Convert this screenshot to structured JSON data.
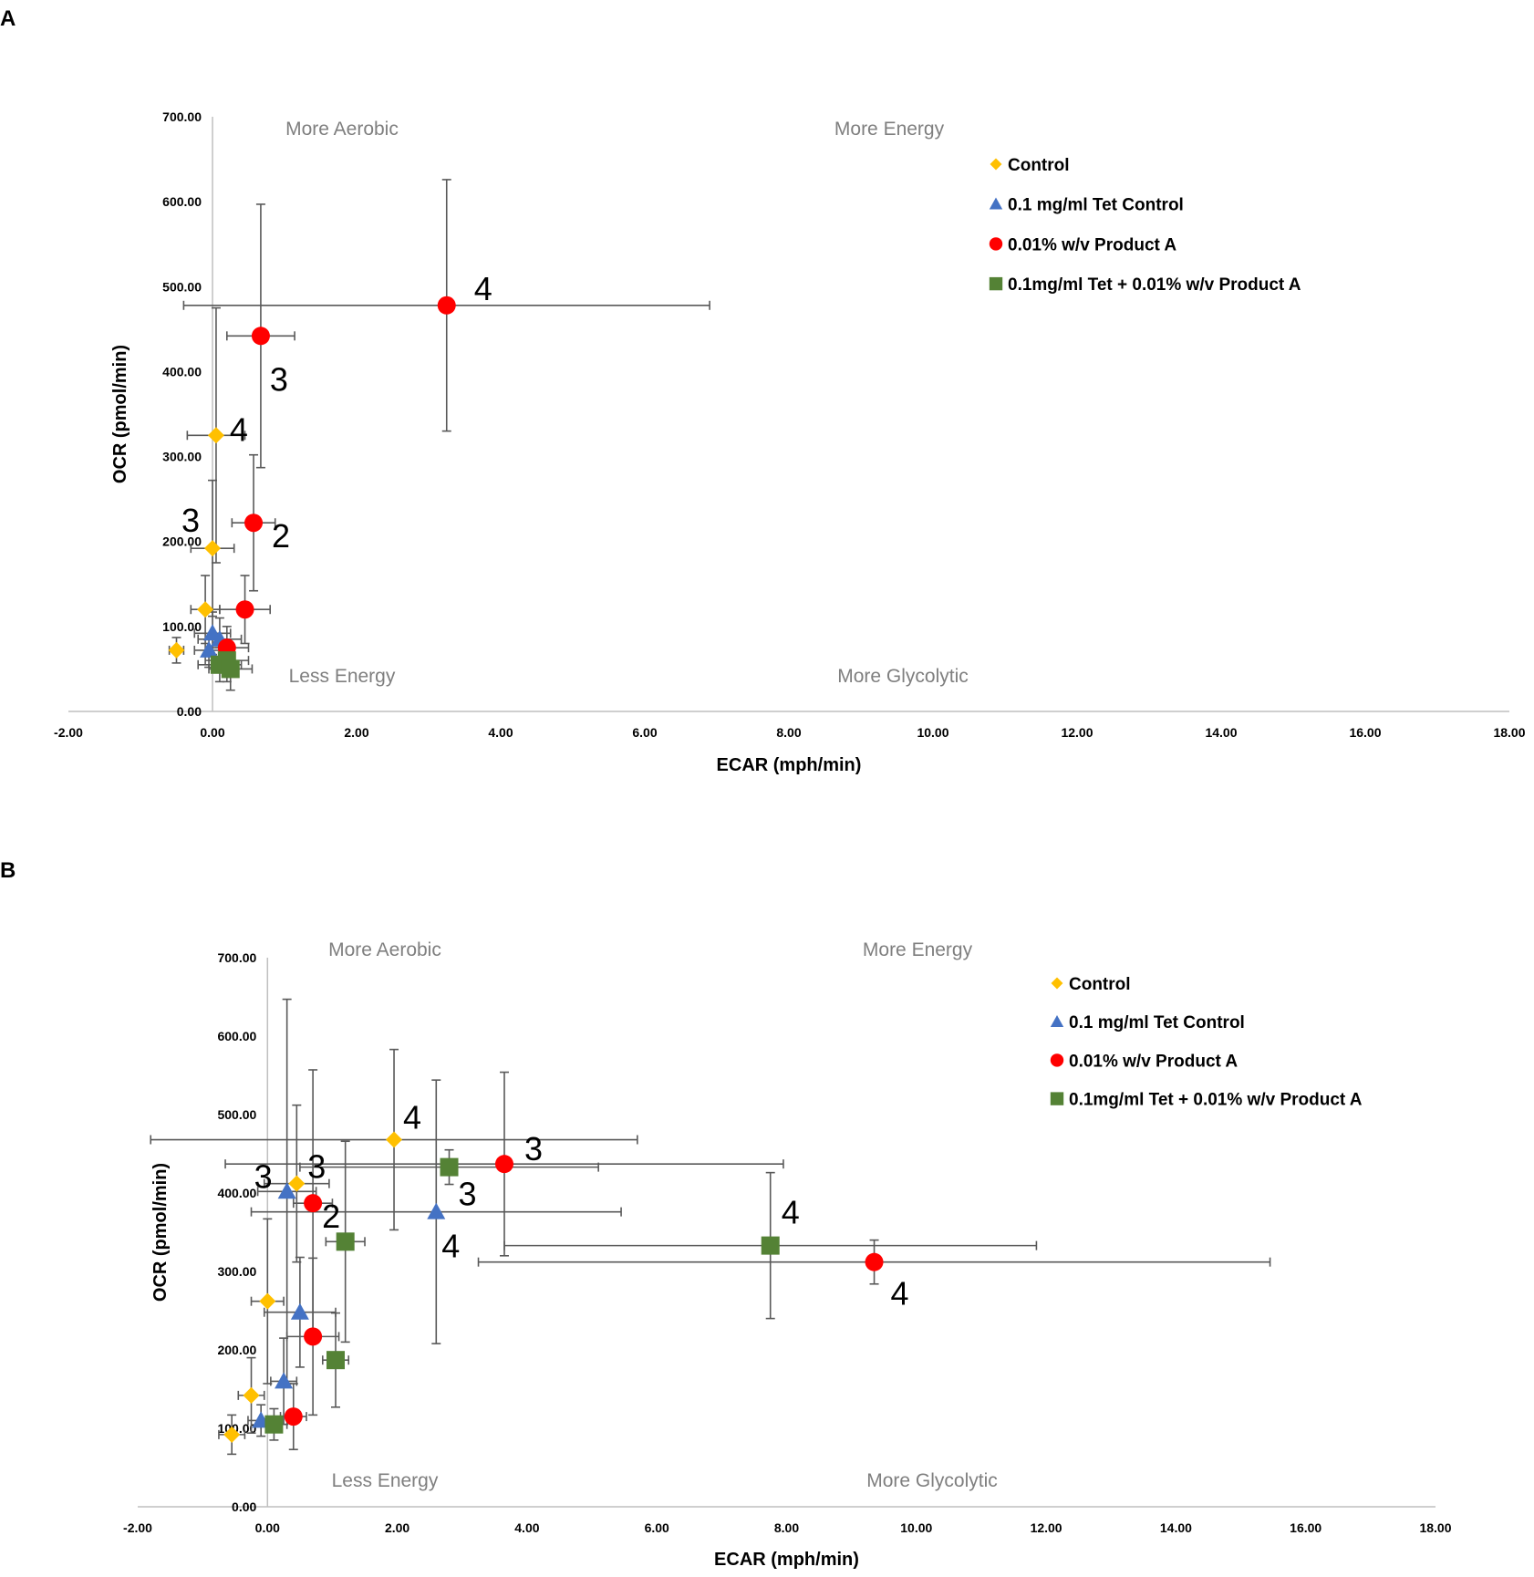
{
  "colors": {
    "control": "#FFC000",
    "tet": "#4472C4",
    "productA": "#FF0000",
    "combo": "#548235",
    "errorbar": "#595959",
    "axis": "#bfbfbf",
    "quadrant": "#7f7f7f"
  },
  "chart_data": [
    {
      "panel": "A",
      "type": "scatter",
      "xlabel": "ECAR (mph/min)",
      "ylabel": "OCR (pmol/min)",
      "xlim": [
        -2,
        18
      ],
      "ylim": [
        0,
        700
      ],
      "xticks": [
        "-2.00",
        "0.00",
        "2.00",
        "4.00",
        "6.00",
        "8.00",
        "10.00",
        "12.00",
        "14.00",
        "16.00",
        "18.00"
      ],
      "yticks": [
        "0.00",
        "100.00",
        "200.00",
        "300.00",
        "400.00",
        "500.00",
        "600.00",
        "700.00"
      ],
      "quadrants": {
        "top_left": "More Aerobic",
        "top_right": "More Energy",
        "bottom_left": "Less Energy",
        "bottom_right": "More Glycolytic"
      },
      "legend": [
        "Control",
        "0.1 mg/ml Tet Control",
        "0.01% w/v Product A",
        "0.1mg/ml Tet + 0.01% w/v Product A"
      ],
      "series": [
        {
          "name": "Control",
          "marker": "diamond",
          "colorKey": "control",
          "points": [
            {
              "x": -0.5,
              "y": 72,
              "xerr": 0.1,
              "yerr": 15
            },
            {
              "x": -0.1,
              "y": 120,
              "xerr": 0.2,
              "yerr": 40
            },
            {
              "x": 0.0,
              "y": 192,
              "xerr": 0.3,
              "yerr": 80,
              "label": "3"
            },
            {
              "x": 0.05,
              "y": 325,
              "xerr": 0.4,
              "yerr": 150,
              "label": "4"
            }
          ]
        },
        {
          "name": "0.1 mg/ml Tet Control",
          "marker": "triangle",
          "colorKey": "tet",
          "points": [
            {
              "x": -0.05,
              "y": 72,
              "xerr": 0.2,
              "yerr": 20
            },
            {
              "x": 0.0,
              "y": 92,
              "xerr": 0.25,
              "yerr": 25
            },
            {
              "x": 0.1,
              "y": 85,
              "xerr": 0.3,
              "yerr": 25
            }
          ]
        },
        {
          "name": "0.01% w/v Product A",
          "marker": "circle",
          "colorKey": "productA",
          "points": [
            {
              "x": 0.2,
              "y": 75,
              "xerr": 0.3,
              "yerr": 25
            },
            {
              "x": 0.45,
              "y": 120,
              "xerr": 0.35,
              "yerr": 40
            },
            {
              "x": 0.57,
              "y": 222,
              "xerr": 0.3,
              "yerr": 80,
              "label": "2"
            },
            {
              "x": 0.67,
              "y": 442,
              "xerr": 0.47,
              "yerr": 155,
              "label": "3"
            },
            {
              "x": 3.25,
              "y": 478,
              "xerr": 3.65,
              "yerr": 148,
              "label": "4"
            }
          ]
        },
        {
          "name": "0.1mg/ml Tet + 0.01% w/v Product A",
          "marker": "square",
          "colorKey": "combo",
          "points": [
            {
              "x": 0.1,
              "y": 55,
              "xerr": 0.3,
              "yerr": 20
            },
            {
              "x": 0.2,
              "y": 60,
              "xerr": 0.3,
              "yerr": 25
            },
            {
              "x": 0.25,
              "y": 50,
              "xerr": 0.3,
              "yerr": 25
            }
          ]
        }
      ]
    },
    {
      "panel": "B",
      "type": "scatter",
      "xlabel": "ECAR (mph/min)",
      "ylabel": "OCR (pmol/min)",
      "xlim": [
        -2,
        18
      ],
      "ylim": [
        0,
        700
      ],
      "xticks": [
        "-2.00",
        "0.00",
        "2.00",
        "4.00",
        "6.00",
        "8.00",
        "10.00",
        "12.00",
        "14.00",
        "16.00",
        "18.00"
      ],
      "yticks": [
        "0.00",
        "100.00",
        "200.00",
        "300.00",
        "400.00",
        "500.00",
        "600.00",
        "700.00"
      ],
      "quadrants": {
        "top_left": "More Aerobic",
        "top_right": "More Energy",
        "bottom_left": "Less Energy",
        "bottom_right": "More Glycolytic"
      },
      "legend": [
        "Control",
        "0.1 mg/ml Tet Control",
        "0.01% w/v Product A",
        "0.1mg/ml Tet + 0.01% w/v Product A"
      ],
      "series": [
        {
          "name": "Control",
          "marker": "diamond",
          "colorKey": "control",
          "points": [
            {
              "x": -0.55,
              "y": 92,
              "xerr": 0.2,
              "yerr": 25
            },
            {
              "x": -0.25,
              "y": 142,
              "xerr": 0.2,
              "yerr": 48
            },
            {
              "x": 0.0,
              "y": 262,
              "xerr": 0.25,
              "yerr": 105
            },
            {
              "x": 0.45,
              "y": 412,
              "xerr": 0.5,
              "yerr": 100,
              "label": "3"
            },
            {
              "x": 1.95,
              "y": 468,
              "xerr": 3.75,
              "yerr": 115,
              "label": "4"
            }
          ]
        },
        {
          "name": "0.1 mg/ml Tet Control",
          "marker": "triangle",
          "colorKey": "tet",
          "points": [
            {
              "x": -0.1,
              "y": 110,
              "xerr": 0.2,
              "yerr": 20
            },
            {
              "x": 0.25,
              "y": 160,
              "xerr": 0.2,
              "yerr": 55
            },
            {
              "x": 0.5,
              "y": 248,
              "xerr": 0.55,
              "yerr": 70
            },
            {
              "x": 0.3,
              "y": 402,
              "xerr": 0.45,
              "yerr": 245,
              "label": "3"
            },
            {
              "x": 2.6,
              "y": 376,
              "xerr": 2.85,
              "yerr": 168,
              "label": "4"
            }
          ]
        },
        {
          "name": "0.01% w/v Product A",
          "marker": "circle",
          "colorKey": "productA",
          "points": [
            {
              "x": 0.4,
              "y": 115,
              "xerr": 0.2,
              "yerr": 42
            },
            {
              "x": 0.7,
              "y": 217,
              "xerr": 0.4,
              "yerr": 100
            },
            {
              "x": 0.7,
              "y": 387,
              "xerr": 0.3,
              "yerr": 170,
              "label": "2"
            },
            {
              "x": 3.65,
              "y": 437,
              "xerr": 4.3,
              "yerr": 117,
              "label": "3"
            },
            {
              "x": 9.35,
              "y": 312,
              "xerr": 6.1,
              "yerr": 28,
              "label": "4"
            }
          ]
        },
        {
          "name": "0.1mg/ml Tet + 0.01% w/v Product A",
          "marker": "square",
          "colorKey": "combo",
          "points": [
            {
              "x": 0.1,
              "y": 105,
              "xerr": 0.2,
              "yerr": 20
            },
            {
              "x": 1.05,
              "y": 187,
              "xerr": 0.2,
              "yerr": 60
            },
            {
              "x": 1.2,
              "y": 338,
              "xerr": 0.3,
              "yerr": 128
            },
            {
              "x": 2.8,
              "y": 433,
              "xerr": 2.3,
              "yerr": 22,
              "label": "3"
            },
            {
              "x": 7.75,
              "y": 333,
              "xerr": 4.1,
              "yerr": 93,
              "label": "4"
            }
          ]
        }
      ]
    }
  ]
}
